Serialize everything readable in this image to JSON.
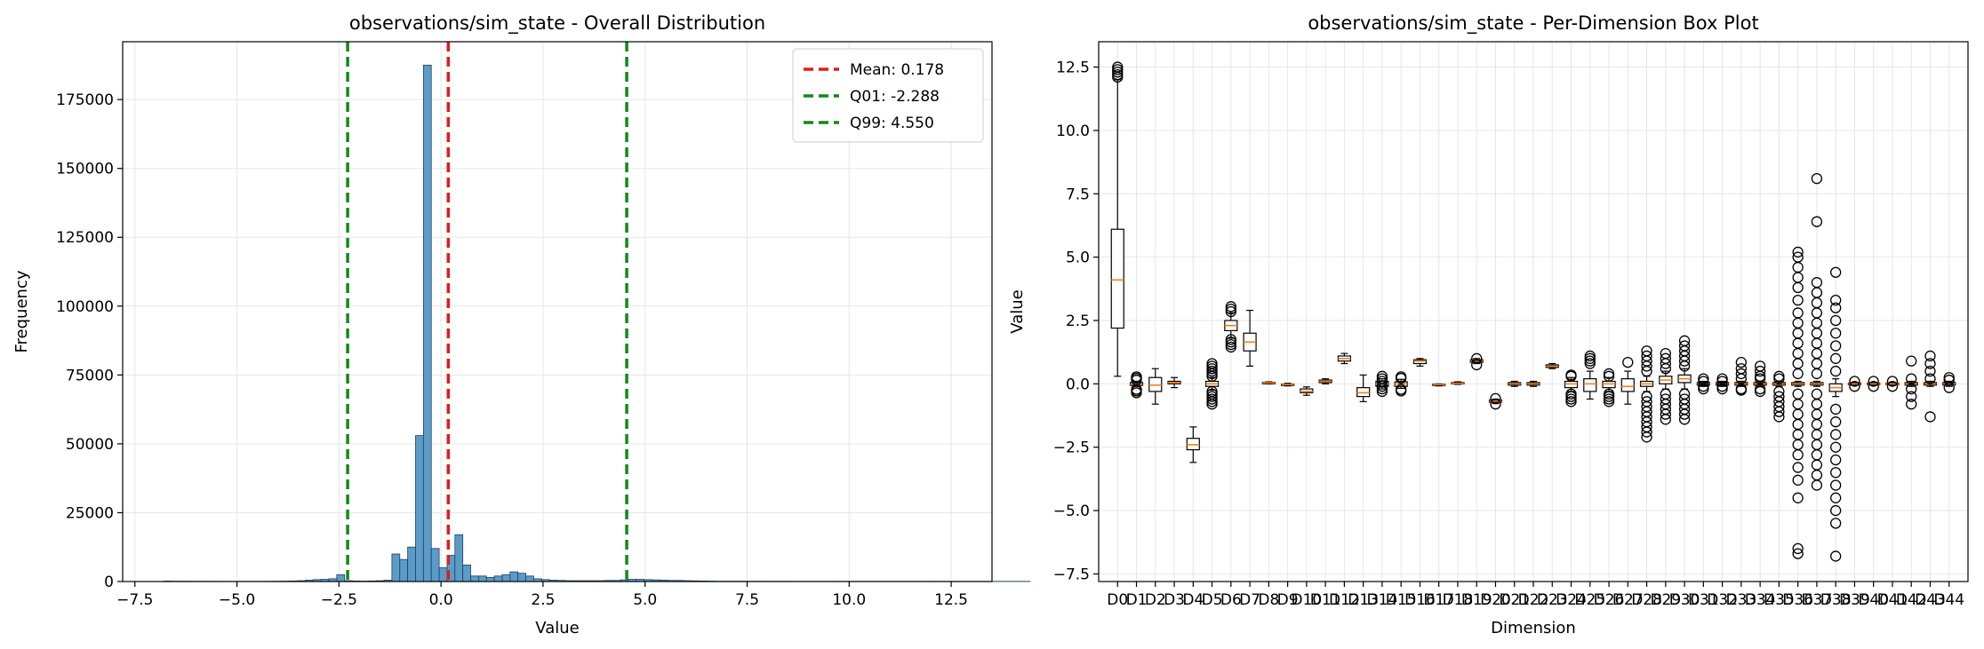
{
  "figure": {
    "background": "#ffffff"
  },
  "chart_data": [
    {
      "type": "histogram",
      "title": "observations/sim_state - Overall Distribution",
      "xlabel": "Value",
      "ylabel": "Frequency",
      "xlim": [
        -7.8,
        13.5
      ],
      "ylim": [
        0,
        196000
      ],
      "xticks": [
        -7.5,
        -5.0,
        -2.5,
        0.0,
        2.5,
        5.0,
        7.5,
        10.0,
        12.5
      ],
      "xtick_labels": [
        "−7.5",
        "−5.0",
        "−2.5",
        "0.0",
        "2.5",
        "5.0",
        "7.5",
        "10.0",
        "12.5"
      ],
      "yticks": [
        0,
        25000,
        50000,
        75000,
        100000,
        125000,
        150000,
        175000
      ],
      "ytick_labels": [
        "0",
        "25000",
        "50000",
        "75000",
        "100000",
        "125000",
        "150000",
        "175000"
      ],
      "grid": true,
      "bar_color": "#5b9bc8",
      "bar_edge_color": "#1f3f5f",
      "bin_start": -6.8,
      "bin_width": 0.193,
      "counts": [
        150,
        120,
        100,
        90,
        80,
        80,
        70,
        60,
        60,
        60,
        60,
        60,
        60,
        80,
        100,
        150,
        200,
        300,
        500,
        700,
        800,
        1000,
        2500,
        300,
        200,
        150,
        200,
        300,
        500,
        10000,
        8000,
        12500,
        53000,
        187500,
        12000,
        5000,
        9500,
        17000,
        6000,
        2000,
        2000,
        1500,
        2000,
        2500,
        3500,
        3000,
        2000,
        1000,
        700,
        500,
        400,
        300,
        300,
        300,
        300,
        300,
        400,
        400,
        600,
        800,
        800,
        700,
        600,
        500,
        400,
        400,
        300,
        250,
        200,
        150,
        100,
        100,
        100,
        100,
        80,
        80,
        80,
        70,
        70,
        70,
        60,
        60,
        60,
        60,
        60,
        60,
        60,
        60,
        60,
        60,
        60,
        60,
        60,
        60,
        60,
        60,
        60,
        60,
        60,
        60,
        60,
        60,
        60,
        60,
        60,
        60,
        60,
        60,
        60,
        60
      ],
      "vlines": [
        {
          "name": "Mean: 0.178",
          "x": 0.178,
          "color": "#e41a1c"
        },
        {
          "name": "Q01: -2.288",
          "x": -2.288,
          "color": "#138a13"
        },
        {
          "name": "Q99: 4.550",
          "x": 4.55,
          "color": "#138a13"
        }
      ],
      "legend_position": "upper-right"
    },
    {
      "type": "box",
      "title": "observations/sim_state - Per-Dimension Box Plot",
      "xlabel": "Dimension",
      "ylabel": "Value",
      "ylim": [
        -7.8,
        13.5
      ],
      "yticks": [
        -7.5,
        -5.0,
        -2.5,
        0.0,
        2.5,
        5.0,
        7.5,
        10.0,
        12.5
      ],
      "ytick_labels": [
        "−7.5",
        "−5.0",
        "−2.5",
        "0.0",
        "2.5",
        "5.0",
        "7.5",
        "10.0",
        "12.5"
      ],
      "grid": true,
      "median_color": "#ff7f0e",
      "categories": [
        "D0",
        "D1",
        "D2",
        "D3",
        "D4",
        "D5",
        "D6",
        "D7",
        "D8",
        "D9",
        "D10",
        "D11",
        "D12",
        "D13",
        "D14",
        "D15",
        "D16",
        "D17",
        "D18",
        "D19",
        "D20",
        "D21",
        "D22",
        "D23",
        "D24",
        "D25",
        "D26",
        "D27",
        "D28",
        "D29",
        "D30",
        "D31",
        "D32",
        "D33",
        "D34",
        "D35",
        "D36",
        "D37",
        "D38",
        "D39",
        "D40",
        "D41",
        "D42",
        "D43",
        "D44"
      ],
      "boxes": [
        {
          "q1": 2.2,
          "med": 4.1,
          "q3": 6.1,
          "lo": 0.3,
          "hi": 12.0,
          "out": [
            12.1,
            12.2,
            12.3,
            12.4,
            12.5
          ]
        },
        {
          "q1": -0.06,
          "med": -0.02,
          "q3": 0.05,
          "lo": -0.1,
          "hi": 0.1,
          "out": [
            -0.35,
            -0.28,
            -0.22,
            0.15,
            0.22,
            0.28
          ]
        },
        {
          "q1": -0.3,
          "med": -0.05,
          "q3": 0.25,
          "lo": -0.8,
          "hi": 0.6,
          "out": []
        },
        {
          "q1": 0.0,
          "med": 0.05,
          "q3": 0.1,
          "lo": -0.15,
          "hi": 0.25,
          "out": []
        },
        {
          "q1": -2.6,
          "med": -2.4,
          "q3": -2.15,
          "lo": -3.1,
          "hi": -1.7,
          "out": []
        },
        {
          "q1": -0.1,
          "med": 0.0,
          "q3": 0.1,
          "lo": -0.25,
          "hi": 0.25,
          "out": [
            -0.8,
            -0.7,
            -0.6,
            -0.5,
            -0.4,
            -0.3,
            0.3,
            0.4,
            0.5,
            0.6,
            0.7,
            0.8
          ]
        },
        {
          "q1": 2.1,
          "med": 2.3,
          "q3": 2.5,
          "lo": 1.8,
          "hi": 2.8,
          "out": [
            1.45,
            1.55,
            1.65,
            1.75,
            2.85,
            2.95,
            3.05
          ]
        },
        {
          "q1": 1.3,
          "med": 1.65,
          "q3": 2.0,
          "lo": 0.7,
          "hi": 2.9,
          "out": []
        },
        {
          "q1": 0.02,
          "med": 0.04,
          "q3": 0.06,
          "lo": 0.0,
          "hi": 0.08,
          "out": []
        },
        {
          "q1": -0.05,
          "med": -0.03,
          "q3": -0.01,
          "lo": -0.08,
          "hi": 0.02,
          "out": []
        },
        {
          "q1": -0.35,
          "med": -0.3,
          "q3": -0.2,
          "lo": -0.45,
          "hi": -0.12,
          "out": []
        },
        {
          "q1": 0.05,
          "med": 0.1,
          "q3": 0.15,
          "lo": 0.0,
          "hi": 0.2,
          "out": []
        },
        {
          "q1": 0.9,
          "med": 1.0,
          "q3": 1.1,
          "lo": 0.8,
          "hi": 1.2,
          "out": []
        },
        {
          "q1": -0.5,
          "med": -0.35,
          "q3": -0.15,
          "lo": -0.7,
          "hi": 0.35,
          "out": []
        },
        {
          "q1": -0.1,
          "med": 0.0,
          "q3": 0.1,
          "lo": -0.2,
          "hi": 0.2,
          "out": [
            -0.3,
            -0.2,
            -0.1,
            0.1,
            0.2,
            0.3
          ]
        },
        {
          "q1": -0.1,
          "med": 0.0,
          "q3": 0.08,
          "lo": -0.18,
          "hi": 0.18,
          "out": [
            -0.28,
            -0.22,
            0.22,
            0.28
          ]
        },
        {
          "q1": 0.8,
          "med": 0.9,
          "q3": 0.95,
          "lo": 0.7,
          "hi": 1.0,
          "out": []
        },
        {
          "q1": -0.05,
          "med": -0.03,
          "q3": -0.01,
          "lo": -0.08,
          "hi": 0.0,
          "out": []
        },
        {
          "q1": 0.0,
          "med": 0.02,
          "q3": 0.05,
          "lo": -0.02,
          "hi": 0.08,
          "out": []
        },
        {
          "q1": 0.85,
          "med": 0.9,
          "q3": 0.95,
          "lo": 0.8,
          "hi": 1.0,
          "out": [
            0.75,
            1.0
          ]
        },
        {
          "q1": -0.72,
          "med": -0.68,
          "q3": -0.64,
          "lo": -0.78,
          "hi": -0.6,
          "out": [
            -0.8,
            -0.58
          ]
        },
        {
          "q1": -0.05,
          "med": 0.0,
          "q3": 0.05,
          "lo": -0.1,
          "hi": 0.1,
          "out": []
        },
        {
          "q1": -0.05,
          "med": 0.0,
          "q3": 0.05,
          "lo": -0.1,
          "hi": 0.1,
          "out": []
        },
        {
          "q1": 0.65,
          "med": 0.7,
          "q3": 0.75,
          "lo": 0.6,
          "hi": 0.8,
          "out": []
        },
        {
          "q1": -0.15,
          "med": 0.0,
          "q3": 0.1,
          "lo": -0.3,
          "hi": 0.25,
          "out": [
            -0.7,
            -0.6,
            -0.5,
            -0.4,
            0.3,
            0.35
          ]
        },
        {
          "q1": -0.3,
          "med": 0.0,
          "q3": 0.2,
          "lo": -0.6,
          "hi": 0.5,
          "out": [
            0.8,
            0.9,
            1.0,
            1.1
          ]
        },
        {
          "q1": -0.15,
          "med": 0.0,
          "q3": 0.1,
          "lo": -0.3,
          "hi": 0.25,
          "out": [
            -0.7,
            -0.6,
            -0.5,
            -0.4,
            0.3,
            0.4
          ]
        },
        {
          "q1": -0.3,
          "med": -0.1,
          "q3": 0.2,
          "lo": -0.8,
          "hi": 0.5,
          "out": [
            0.85
          ]
        },
        {
          "q1": -0.1,
          "med": 0.0,
          "q3": 0.1,
          "lo": -0.3,
          "hi": 0.3,
          "out": [
            -2.1,
            -1.9,
            -1.7,
            -1.5,
            -1.3,
            -1.1,
            -0.9,
            -0.7,
            -0.5,
            0.5,
            0.7,
            0.9,
            1.1,
            1.3
          ]
        },
        {
          "q1": 0.0,
          "med": 0.15,
          "q3": 0.3,
          "lo": -0.2,
          "hi": 0.5,
          "out": [
            -1.4,
            -1.2,
            -1.0,
            -0.8,
            -0.6,
            -0.4,
            0.6,
            0.8,
            1.0,
            1.2
          ]
        },
        {
          "q1": 0.05,
          "med": 0.2,
          "q3": 0.35,
          "lo": -0.2,
          "hi": 0.6,
          "out": [
            -1.4,
            -1.2,
            -1.0,
            -0.8,
            -0.6,
            -0.4,
            0.7,
            0.9,
            1.1,
            1.3,
            1.5,
            1.7
          ]
        },
        {
          "q1": -0.05,
          "med": 0.0,
          "q3": 0.05,
          "lo": -0.1,
          "hi": 0.1,
          "out": [
            -0.2,
            -0.1,
            0.1,
            0.2
          ]
        },
        {
          "q1": -0.05,
          "med": 0.0,
          "q3": 0.05,
          "lo": -0.1,
          "hi": 0.1,
          "out": [
            -0.2,
            -0.1,
            0.1,
            0.2
          ]
        },
        {
          "q1": -0.05,
          "med": 0.0,
          "q3": 0.05,
          "lo": -0.1,
          "hi": 0.1,
          "out": [
            -0.25,
            -0.2,
            0.2,
            0.4,
            0.6,
            0.85
          ]
        },
        {
          "q1": -0.05,
          "med": 0.0,
          "q3": 0.05,
          "lo": -0.1,
          "hi": 0.1,
          "out": [
            -0.3,
            -0.2,
            0.2,
            0.3,
            0.5,
            0.7
          ]
        },
        {
          "q1": -0.05,
          "med": 0.0,
          "q3": 0.05,
          "lo": -0.1,
          "hi": 0.1,
          "out": [
            -1.3,
            -1.1,
            -0.9,
            -0.7,
            -0.5,
            -0.3,
            0.2,
            0.3
          ]
        },
        {
          "q1": -0.05,
          "med": 0.0,
          "q3": 0.05,
          "lo": -0.1,
          "hi": 0.1,
          "out": [
            -6.7,
            -6.5,
            -4.5,
            -3.8,
            -3.3,
            -2.8,
            -2.4,
            -2.0,
            -1.6,
            -1.2,
            -0.8,
            -0.4,
            0.4,
            0.8,
            1.2,
            1.6,
            2.0,
            2.4,
            2.8,
            3.3,
            3.8,
            4.2,
            4.6,
            5.0,
            5.2
          ]
        },
        {
          "q1": -0.05,
          "med": 0.0,
          "q3": 0.05,
          "lo": -0.1,
          "hi": 0.1,
          "out": [
            -4.0,
            -3.6,
            -3.2,
            -2.8,
            -2.4,
            -2.0,
            -1.6,
            -1.2,
            -0.8,
            -0.4,
            0.4,
            0.8,
            1.2,
            1.6,
            2.0,
            2.4,
            2.8,
            3.2,
            3.6,
            4.0,
            6.4,
            8.1
          ]
        },
        {
          "q1": -0.3,
          "med": -0.15,
          "q3": 0.0,
          "lo": -0.5,
          "hi": 0.2,
          "out": [
            -6.8,
            -5.5,
            -5.0,
            -4.5,
            -4.0,
            -3.5,
            -3.0,
            -2.5,
            -2.0,
            -1.5,
            -1.0,
            0.5,
            1.0,
            1.5,
            2.0,
            2.5,
            3.0,
            3.3,
            4.4
          ]
        },
        {
          "q1": -0.03,
          "med": 0.0,
          "q3": 0.03,
          "lo": -0.06,
          "hi": 0.06,
          "out": [
            -0.1,
            0.1
          ]
        },
        {
          "q1": -0.03,
          "med": 0.0,
          "q3": 0.03,
          "lo": -0.06,
          "hi": 0.06,
          "out": [
            -0.1,
            0.1
          ]
        },
        {
          "q1": -0.03,
          "med": 0.0,
          "q3": 0.03,
          "lo": -0.06,
          "hi": 0.06,
          "out": [
            -0.1,
            0.1
          ]
        },
        {
          "q1": -0.05,
          "med": 0.0,
          "q3": 0.05,
          "lo": -0.1,
          "hi": 0.1,
          "out": [
            -0.8,
            -0.5,
            -0.2,
            0.2,
            0.9
          ]
        },
        {
          "q1": -0.05,
          "med": 0.0,
          "q3": 0.05,
          "lo": -0.1,
          "hi": 0.1,
          "out": [
            -1.3,
            0.2,
            0.5,
            0.8,
            1.1
          ]
        },
        {
          "q1": -0.05,
          "med": 0.0,
          "q3": 0.05,
          "lo": -0.1,
          "hi": 0.1,
          "out": [
            -0.15,
            0.15,
            0.25
          ]
        }
      ]
    }
  ]
}
